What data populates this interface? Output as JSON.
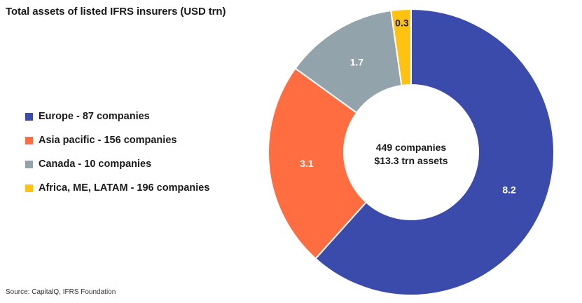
{
  "chart_data": {
    "type": "pie",
    "title": "Total assets of listed IFRS insurers (USD trn)",
    "donut": true,
    "center_text": [
      "449 companies",
      "$13.3 trn assets"
    ],
    "legend_position": "left",
    "slices": [
      {
        "legend": "Europe - 87 companies",
        "value": 8.2,
        "label": "8.2",
        "color": "#3a4bab",
        "label_color": "#ffffff"
      },
      {
        "legend": "Asia pacific - 156 companies",
        "value": 3.1,
        "label": "3.1",
        "color": "#ff6d40",
        "label_color": "#ffffff"
      },
      {
        "legend": "Canada - 10 companies",
        "value": 1.7,
        "label": "1.7",
        "color": "#92a3ab",
        "label_color": "#ffffff"
      },
      {
        "legend": "Africa, ME, LATAM - 196 companies",
        "value": 0.3,
        "label": "0.3",
        "color": "#ffc20e",
        "label_color": "#1a1a1a"
      }
    ]
  },
  "source": "Source: CapitalQ, IFRS Foundation"
}
